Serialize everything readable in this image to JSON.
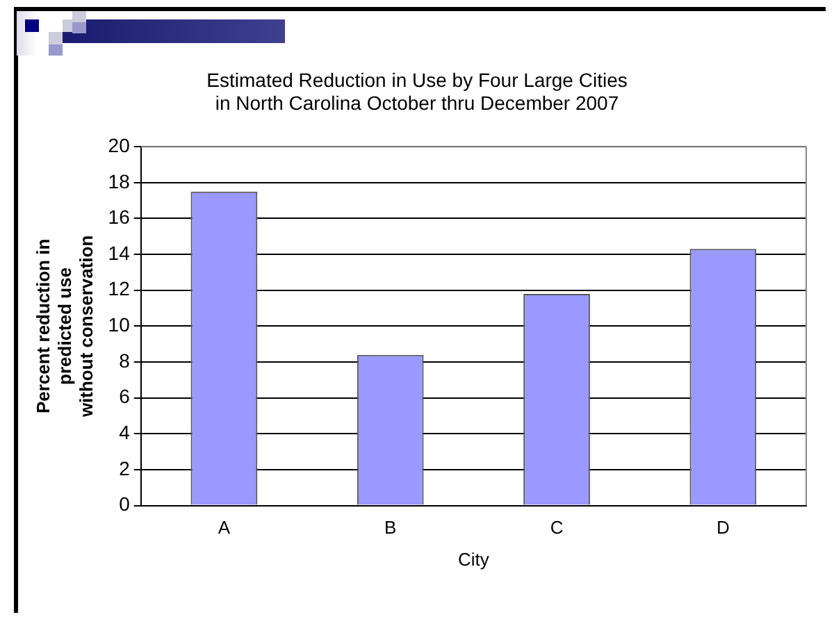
{
  "chart_data": {
    "type": "bar",
    "title": [
      "Estimated Reduction in Use by Four Large Cities",
      "in North Carolina October thru December 2007"
    ],
    "xlabel": "City",
    "ylabel": [
      "Percent reduction in",
      "predicted use",
      "without conservation"
    ],
    "categories": [
      "A",
      "B",
      "C",
      "D"
    ],
    "values": [
      17.5,
      8.4,
      11.8,
      14.3
    ],
    "color": "#9999ff",
    "ylim": [
      0,
      20
    ],
    "yticks": [
      0,
      2,
      4,
      6,
      8,
      10,
      12,
      14,
      16,
      18,
      20
    ],
    "grid": "y",
    "legend": false
  }
}
